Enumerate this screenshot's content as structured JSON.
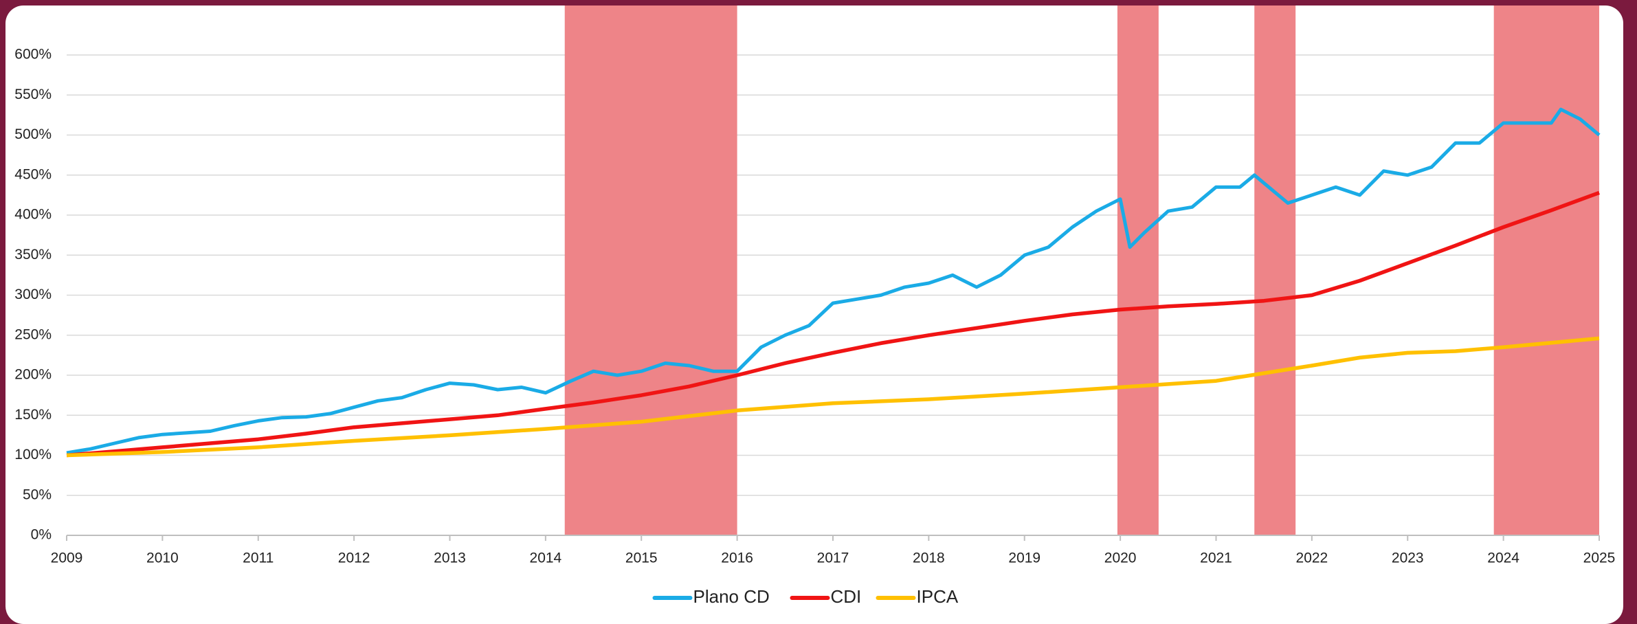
{
  "chart_data": {
    "type": "line",
    "xlim": [
      2009,
      2025
    ],
    "xticks": [
      2009,
      2010,
      2011,
      2012,
      2013,
      2014,
      2015,
      2016,
      2017,
      2018,
      2019,
      2020,
      2021,
      2022,
      2023,
      2024,
      2025
    ],
    "ylim": [
      0,
      600
    ],
    "yticks": [
      {
        "value": 0,
        "label": "0%"
      },
      {
        "value": 50,
        "label": "50%"
      },
      {
        "value": 100,
        "label": "100%"
      },
      {
        "value": 150,
        "label": "150%"
      },
      {
        "value": 200,
        "label": "200%"
      },
      {
        "value": 250,
        "label": "250%"
      },
      {
        "value": 300,
        "label": "300%"
      },
      {
        "value": 350,
        "label": "350%"
      },
      {
        "value": 400,
        "label": "400%"
      },
      {
        "value": 450,
        "label": "450%"
      },
      {
        "value": 500,
        "label": "500%"
      },
      {
        "value": 550,
        "label": "550%"
      },
      {
        "value": 600,
        "label": "600%"
      }
    ],
    "grid": true,
    "legend": "bottom",
    "shaded_regions": [
      [
        2014.2,
        2016.0
      ],
      [
        2019.97,
        2020.4
      ],
      [
        2021.4,
        2021.83
      ],
      [
        2023.9,
        2025.0
      ]
    ],
    "shaded_color": "#ee8488",
    "series": [
      {
        "name": "Plano CD",
        "color": "#1aabe6",
        "x": [
          2009,
          2009.25,
          2009.5,
          2009.75,
          2010,
          2010.25,
          2010.5,
          2010.75,
          2011,
          2011.25,
          2011.5,
          2011.75,
          2012,
          2012.25,
          2012.5,
          2012.75,
          2013,
          2013.25,
          2013.5,
          2013.75,
          2014,
          2014.25,
          2014.5,
          2014.75,
          2015,
          2015.25,
          2015.5,
          2015.75,
          2016,
          2016.25,
          2016.5,
          2016.75,
          2017,
          2017.25,
          2017.5,
          2017.75,
          2018,
          2018.25,
          2018.5,
          2018.75,
          2019,
          2019.25,
          2019.5,
          2019.75,
          2020,
          2020.1,
          2020.25,
          2020.5,
          2020.75,
          2021,
          2021.25,
          2021.4,
          2021.6,
          2021.75,
          2022,
          2022.25,
          2022.5,
          2022.75,
          2023,
          2023.25,
          2023.5,
          2023.75,
          2024,
          2024.25,
          2024.5,
          2024.6,
          2024.8,
          2025
        ],
        "values": [
          103,
          108,
          115,
          122,
          126,
          128,
          130,
          137,
          143,
          147,
          148,
          152,
          160,
          168,
          172,
          182,
          190,
          188,
          182,
          185,
          178,
          192,
          205,
          200,
          205,
          215,
          212,
          205,
          205,
          235,
          250,
          262,
          290,
          295,
          300,
          310,
          315,
          325,
          310,
          325,
          350,
          360,
          385,
          405,
          420,
          360,
          378,
          405,
          410,
          435,
          435,
          450,
          430,
          415,
          425,
          435,
          425,
          455,
          450,
          460,
          490,
          490,
          515,
          515,
          515,
          532,
          520,
          500
        ]
      },
      {
        "name": "CDI",
        "color": "#f01414",
        "x": [
          2009,
          2009.5,
          2010,
          2010.5,
          2011,
          2011.5,
          2012,
          2012.5,
          2013,
          2013.5,
          2014,
          2014.5,
          2015,
          2015.5,
          2016,
          2016.5,
          2017,
          2017.5,
          2018,
          2018.5,
          2019,
          2019.5,
          2020,
          2020.5,
          2021,
          2021.5,
          2022,
          2022.5,
          2023,
          2023.5,
          2024,
          2024.5,
          2025
        ],
        "values": [
          100,
          105,
          110,
          115,
          120,
          127,
          135,
          140,
          145,
          150,
          158,
          166,
          175,
          186,
          200,
          215,
          228,
          240,
          250,
          259,
          268,
          276,
          282,
          286,
          289,
          293,
          300,
          318,
          340,
          362,
          385,
          406,
          428
        ]
      },
      {
        "name": "IPCA",
        "color": "#ffc000",
        "x": [
          2009,
          2010,
          2011,
          2012,
          2013,
          2014,
          2015,
          2016,
          2017,
          2018,
          2019,
          2020,
          2021,
          2022,
          2022.5,
          2023,
          2023.5,
          2024,
          2025
        ],
        "values": [
          100,
          104,
          110,
          118,
          125,
          133,
          142,
          156,
          165,
          170,
          177,
          185,
          193,
          212,
          222,
          228,
          230,
          235,
          246
        ]
      }
    ]
  }
}
